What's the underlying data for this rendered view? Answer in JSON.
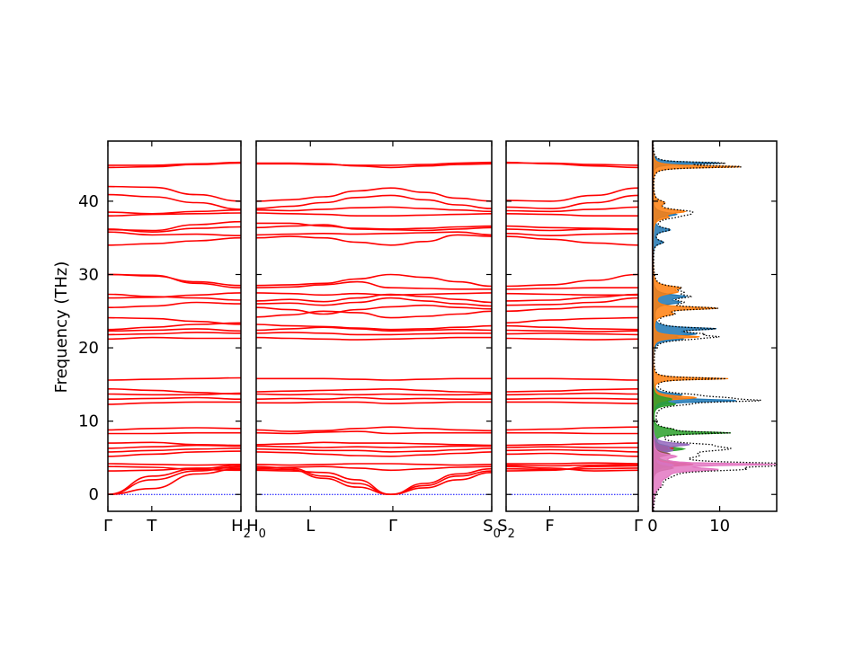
{
  "chart_data": {
    "type": "line",
    "ylabel": "Frequency (THz)",
    "ylim": [
      -2.3,
      48.2
    ],
    "yticks": [
      0,
      10,
      20,
      30,
      40
    ],
    "grid": false,
    "band_color": "#ff0000",
    "zero_line_color": "#0000ff",
    "segments": [
      {
        "name": "segment-1",
        "xticks": [
          {
            "pos": 0.0,
            "label": "Γ"
          },
          {
            "pos": 0.33,
            "label": "T"
          },
          {
            "pos": 1.0,
            "label": "H",
            "sub": "2"
          }
        ],
        "bands": [
          [
            0.0,
            2.5,
            3.5,
            4.0
          ],
          [
            0.0,
            2.0,
            3.2,
            3.8
          ],
          [
            0.0,
            0.8,
            2.8,
            3.5
          ],
          [
            3.2,
            3.3,
            3.6,
            3.6
          ],
          [
            3.8,
            3.7,
            3.4,
            3.3
          ],
          [
            4.2,
            4.1,
            4.0,
            4.1
          ],
          [
            5.2,
            5.5,
            5.8,
            5.9
          ],
          [
            5.8,
            6.0,
            6.2,
            6.3
          ],
          [
            6.3,
            6.5,
            6.7,
            6.6
          ],
          [
            7.0,
            7.1,
            6.8,
            6.7
          ],
          [
            8.3,
            8.3,
            8.4,
            8.4
          ],
          [
            8.8,
            9.0,
            9.1,
            9.0
          ],
          [
            12.3,
            12.5,
            12.6,
            12.6
          ],
          [
            13.0,
            13.1,
            13.2,
            13.0
          ],
          [
            13.7,
            13.6,
            13.6,
            13.8
          ],
          [
            14.4,
            14.2,
            13.9,
            13.7
          ],
          [
            15.6,
            15.7,
            15.8,
            15.9
          ],
          [
            21.2,
            21.4,
            21.3,
            21.3
          ],
          [
            21.8,
            21.9,
            22.1,
            22.0
          ],
          [
            22.3,
            22.4,
            22.6,
            22.3
          ],
          [
            22.5,
            22.8,
            23.2,
            23.4
          ],
          [
            24.1,
            24.0,
            23.6,
            23.2
          ],
          [
            25.5,
            25.7,
            26.2,
            26.0
          ],
          [
            26.8,
            26.9,
            27.2,
            27.5
          ],
          [
            27.3,
            27.0,
            26.8,
            26.5
          ],
          [
            30.0,
            29.9,
            28.8,
            28.2
          ],
          [
            30.0,
            29.8,
            29.0,
            28.5
          ],
          [
            34.0,
            34.2,
            34.6,
            35.0
          ],
          [
            35.8,
            35.4,
            35.5,
            35.3
          ],
          [
            36.2,
            35.8,
            36.3,
            36.5
          ],
          [
            36.1,
            36.0,
            36.8,
            37.2
          ],
          [
            38.0,
            38.2,
            38.3,
            38.4
          ],
          [
            38.5,
            38.3,
            38.6,
            38.8
          ],
          [
            40.9,
            40.6,
            39.8,
            38.9
          ],
          [
            42.0,
            41.9,
            40.9,
            40.0
          ],
          [
            44.6,
            44.7,
            45.0,
            45.2
          ],
          [
            44.9,
            44.9,
            45.1,
            45.3
          ]
        ]
      },
      {
        "name": "segment-2",
        "xticks": [
          {
            "pos": 0.0,
            "label": "H",
            "sub": "0"
          },
          {
            "pos": 0.23,
            "label": "L"
          },
          {
            "pos": 0.58,
            "label": "Γ"
          },
          {
            "pos": 1.0,
            "label": "S",
            "sub": "0"
          }
        ],
        "bands": [
          [
            3.8,
            3.6,
            2.5,
            1.5,
            0.0,
            1.5,
            2.8,
            3.5
          ],
          [
            3.5,
            3.4,
            2.2,
            1.0,
            0.0,
            1.2,
            2.5,
            3.2
          ],
          [
            3.3,
            3.2,
            3.0,
            2.0,
            0.0,
            0.9,
            2.0,
            3.0
          ],
          [
            3.6,
            3.7,
            3.8,
            3.6,
            3.3,
            3.5,
            3.7,
            3.8
          ],
          [
            4.1,
            4.0,
            4.1,
            4.2,
            4.2,
            4.1,
            4.0,
            4.1
          ],
          [
            5.8,
            5.7,
            5.5,
            5.3,
            5.2,
            5.4,
            5.6,
            5.8
          ],
          [
            6.2,
            6.1,
            6.0,
            6.0,
            5.8,
            5.9,
            6.1,
            6.3
          ],
          [
            6.6,
            6.5,
            6.4,
            6.5,
            6.4,
            6.5,
            6.6,
            6.6
          ],
          [
            6.8,
            6.9,
            7.1,
            7.0,
            7.0,
            6.9,
            6.8,
            6.7
          ],
          [
            8.4,
            8.3,
            8.5,
            8.6,
            8.3,
            8.4,
            8.4,
            8.4
          ],
          [
            8.8,
            8.6,
            8.7,
            9.0,
            9.2,
            9.0,
            8.8,
            8.7
          ],
          [
            12.5,
            12.5,
            12.6,
            12.6,
            12.4,
            12.5,
            12.6,
            12.6
          ],
          [
            13.0,
            13.1,
            13.0,
            13.2,
            13.0,
            13.1,
            13.0,
            13.0
          ],
          [
            13.7,
            13.6,
            13.7,
            13.6,
            13.7,
            13.6,
            13.6,
            13.7
          ],
          [
            14.0,
            14.1,
            14.2,
            14.3,
            14.4,
            14.2,
            14.0,
            13.9
          ],
          [
            15.8,
            15.8,
            15.8,
            15.7,
            15.6,
            15.7,
            15.8,
            15.8
          ],
          [
            21.4,
            21.3,
            21.2,
            21.1,
            21.2,
            21.3,
            21.4,
            21.4
          ],
          [
            22.0,
            22.1,
            22.0,
            21.8,
            21.8,
            21.9,
            22.0,
            22.0
          ],
          [
            22.4,
            22.6,
            22.8,
            22.6,
            22.3,
            22.4,
            22.5,
            22.4
          ],
          [
            23.2,
            23.0,
            22.9,
            22.7,
            22.5,
            22.6,
            22.8,
            23.0
          ],
          [
            24.2,
            24.5,
            25.0,
            24.8,
            24.1,
            24.3,
            24.6,
            25.0
          ],
          [
            25.5,
            25.2,
            24.6,
            25.2,
            25.6,
            25.8,
            25.5,
            25.3
          ],
          [
            26.0,
            26.1,
            25.8,
            26.2,
            26.8,
            26.4,
            26.0,
            25.7
          ],
          [
            26.4,
            26.6,
            26.3,
            26.8,
            27.3,
            27.0,
            26.6,
            26.2
          ],
          [
            27.5,
            27.4,
            27.2,
            27.4,
            27.2,
            27.3,
            27.4,
            27.5
          ],
          [
            28.2,
            28.3,
            28.6,
            29.0,
            28.2,
            28.1,
            28.0,
            28.0
          ],
          [
            28.5,
            28.6,
            28.8,
            29.4,
            30.0,
            29.6,
            29.0,
            28.4
          ],
          [
            35.0,
            35.2,
            35.0,
            34.4,
            34.0,
            34.5,
            35.4,
            35.2
          ],
          [
            35.4,
            35.5,
            35.6,
            35.5,
            35.6,
            35.7,
            35.8,
            35.4
          ],
          [
            36.4,
            36.6,
            36.8,
            36.2,
            36.1,
            36.0,
            36.2,
            36.4
          ],
          [
            37.0,
            37.0,
            36.6,
            36.3,
            36.2,
            36.3,
            36.5,
            36.6
          ],
          [
            38.4,
            38.3,
            38.2,
            38.0,
            38.0,
            38.1,
            38.2,
            38.3
          ],
          [
            38.8,
            38.7,
            38.9,
            39.1,
            39.2,
            39.0,
            38.8,
            38.6
          ],
          [
            39.0,
            39.3,
            39.8,
            40.5,
            40.8,
            40.2,
            39.5,
            39.0
          ],
          [
            40.0,
            40.2,
            40.6,
            41.4,
            41.8,
            41.2,
            40.4,
            40.0
          ],
          [
            45.1,
            45.1,
            45.0,
            44.9,
            44.9,
            45.0,
            45.2,
            45.3
          ],
          [
            45.2,
            45.2,
            45.1,
            44.8,
            44.6,
            44.8,
            45.0,
            45.1
          ]
        ]
      },
      {
        "name": "segment-3",
        "xticks": [
          {
            "pos": 0.0,
            "label": "S",
            "sub": "2"
          },
          {
            "pos": 0.33,
            "label": "F"
          },
          {
            "pos": 1.0,
            "label": "Γ"
          }
        ],
        "bands": [
          [
            3.8,
            3.6,
            3.2,
            3.3
          ],
          [
            3.5,
            3.4,
            3.5,
            3.6
          ],
          [
            3.2,
            3.3,
            3.8,
            3.9
          ],
          [
            4.0,
            3.9,
            4.0,
            4.1
          ],
          [
            4.2,
            4.2,
            4.3,
            4.2
          ],
          [
            5.5,
            5.6,
            5.4,
            5.2
          ],
          [
            6.0,
            6.1,
            6.0,
            5.8
          ],
          [
            6.4,
            6.5,
            6.4,
            6.4
          ],
          [
            6.7,
            6.8,
            6.9,
            7.0
          ],
          [
            8.4,
            8.4,
            8.3,
            8.3
          ],
          [
            8.8,
            8.9,
            9.1,
            9.2
          ],
          [
            12.6,
            12.6,
            12.5,
            12.4
          ],
          [
            13.0,
            13.1,
            13.1,
            13.0
          ],
          [
            13.6,
            13.7,
            13.8,
            13.7
          ],
          [
            14.0,
            14.1,
            14.3,
            14.4
          ],
          [
            15.8,
            15.8,
            15.7,
            15.6
          ],
          [
            21.3,
            21.2,
            21.1,
            21.2
          ],
          [
            21.9,
            22.0,
            21.9,
            21.8
          ],
          [
            22.4,
            22.3,
            22.2,
            22.3
          ],
          [
            23.0,
            22.8,
            22.6,
            22.5
          ],
          [
            23.4,
            23.8,
            24.0,
            24.1
          ],
          [
            25.0,
            25.3,
            25.6,
            25.6
          ],
          [
            25.8,
            25.9,
            26.2,
            26.8
          ],
          [
            26.4,
            26.5,
            26.9,
            27.3
          ],
          [
            27.4,
            27.3,
            27.2,
            27.2
          ],
          [
            28.0,
            28.1,
            28.2,
            28.2
          ],
          [
            28.4,
            28.6,
            29.2,
            30.0
          ],
          [
            35.2,
            34.8,
            34.3,
            34.0
          ],
          [
            35.6,
            35.3,
            35.5,
            35.6
          ],
          [
            36.2,
            36.0,
            36.2,
            36.1
          ],
          [
            36.6,
            36.4,
            36.3,
            36.2
          ],
          [
            38.3,
            38.2,
            38.0,
            38.0
          ],
          [
            38.7,
            38.6,
            38.9,
            39.2
          ],
          [
            39.2,
            39.0,
            39.8,
            40.8
          ],
          [
            40.1,
            40.0,
            40.8,
            41.8
          ],
          [
            45.2,
            45.2,
            45.0,
            44.9
          ],
          [
            45.3,
            45.1,
            44.8,
            44.6
          ]
        ]
      }
    ],
    "dos_panel": {
      "xlim": [
        0,
        18.5
      ],
      "xticks": [
        0,
        10
      ],
      "total_color": "#000000",
      "series": [
        {
          "color": "#1f77b4",
          "peaks": [
            [
              45.2,
              10.5,
              0.15
            ],
            [
              36.1,
              2.5,
              0.3
            ],
            [
              34.4,
              1.5,
              0.3
            ],
            [
              38.2,
              3.5,
              0.3
            ],
            [
              27.0,
              4.5,
              0.3
            ],
            [
              26.2,
              3.5,
              0.3
            ],
            [
              22.6,
              8.8,
              0.2
            ],
            [
              21.9,
              5.5,
              0.25
            ],
            [
              21.2,
              3.8,
              0.25
            ],
            [
              13.6,
              3.6,
              0.25
            ],
            [
              12.8,
              12.5,
              0.2
            ],
            [
              6.5,
              2.5,
              0.3
            ],
            [
              4.0,
              2.0,
              0.3
            ]
          ]
        },
        {
          "color": "#ff7f0e",
          "peaks": [
            [
              44.7,
              13.8,
              0.15
            ],
            [
              39.8,
              1.5,
              0.35
            ],
            [
              38.6,
              4.5,
              0.3
            ],
            [
              37.8,
              1.8,
              0.3
            ],
            [
              28.2,
              3.5,
              0.3
            ],
            [
              27.6,
              3.0,
              0.3
            ],
            [
              25.4,
              9.2,
              0.2
            ],
            [
              24.6,
              2.5,
              0.3
            ],
            [
              21.5,
              7.0,
              0.2
            ],
            [
              15.8,
              11.2,
              0.15
            ],
            [
              13.2,
              6.5,
              0.25
            ]
          ]
        },
        {
          "color": "#2ca02c",
          "peaks": [
            [
              13.0,
              2.5,
              0.3
            ],
            [
              12.3,
              3.0,
              0.25
            ],
            [
              8.4,
              11.2,
              0.15
            ],
            [
              8.9,
              2.0,
              0.25
            ],
            [
              6.2,
              4.5,
              0.3
            ],
            [
              4.2,
              5.0,
              0.3
            ]
          ]
        },
        {
          "color": "#d62728",
          "peaks": [
            [
              6.3,
              3.0,
              0.3
            ],
            [
              4.1,
              6.0,
              0.25
            ]
          ]
        },
        {
          "color": "#9467bd",
          "peaks": [
            [
              6.8,
              5.2,
              0.25
            ],
            [
              6.0,
              2.5,
              0.3
            ],
            [
              4.0,
              3.0,
              0.3
            ]
          ]
        },
        {
          "color": "#8c564b",
          "peaks": [
            [
              5.5,
              2.5,
              0.3
            ],
            [
              3.6,
              3.0,
              0.3
            ]
          ]
        },
        {
          "color": "#e377c2",
          "peaks": [
            [
              4.1,
              17.5,
              0.15
            ],
            [
              3.4,
              8.5,
              0.25
            ],
            [
              2.5,
              1.5,
              0.6
            ],
            [
              1.2,
              0.8,
              0.6
            ],
            [
              5.2,
              3.0,
              0.3
            ]
          ]
        }
      ]
    }
  }
}
